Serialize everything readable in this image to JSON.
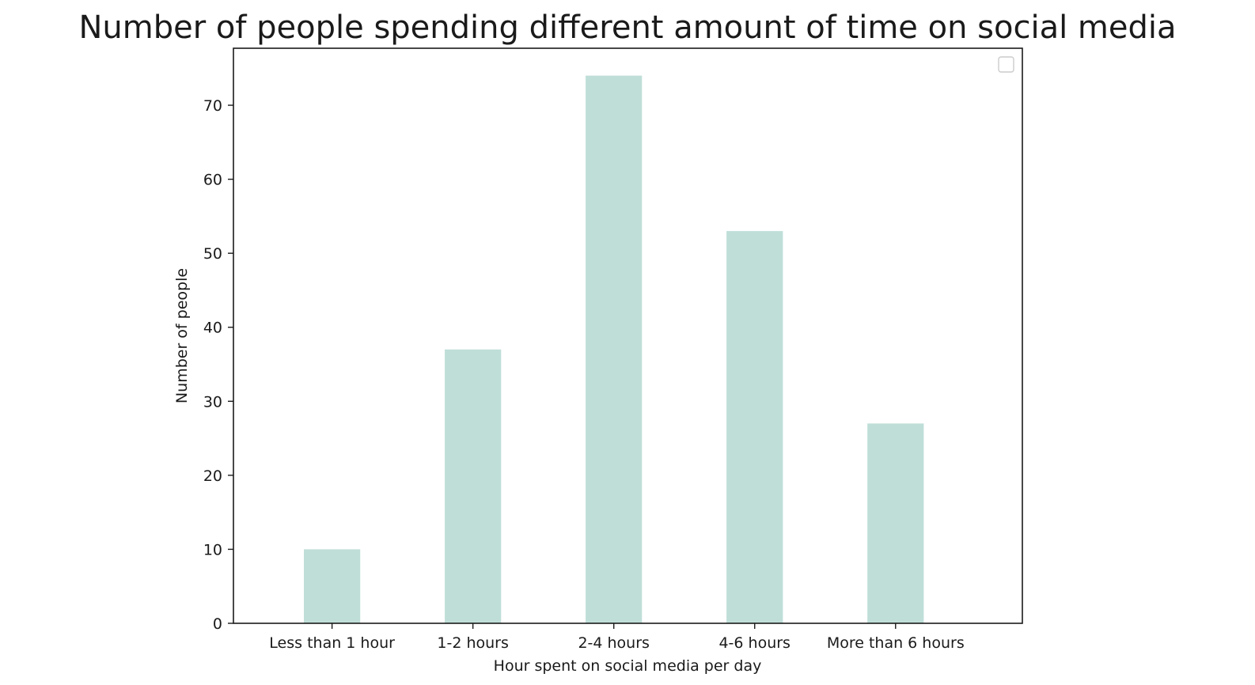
{
  "chart_data": {
    "type": "bar",
    "title": "Number of people spending different amount of time on social media",
    "xlabel": "Hour spent on social media per day",
    "ylabel": "Number of people",
    "categories": [
      "Less than 1 hour",
      "1-2 hours",
      "2-4 hours",
      "4-6 hours",
      "More than 6 hours"
    ],
    "values": [
      10,
      37,
      74,
      53,
      27
    ],
    "ylim": [
      0,
      77.7
    ],
    "yticks": [
      0,
      10,
      20,
      30,
      40,
      50,
      60,
      70
    ],
    "grid": false,
    "legend": "top-right (empty)",
    "bar_color": "#bfded8",
    "axis_color": "#1a1a1a"
  }
}
